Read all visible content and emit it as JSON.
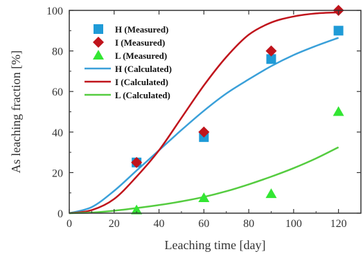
{
  "chart_data": {
    "type": "scatter",
    "xlabel": "Leaching time [day]",
    "ylabel": "As leaching fraction [%]",
    "xlim": [
      0,
      130
    ],
    "ylim": [
      0,
      100
    ],
    "xticks": [
      0,
      20,
      40,
      60,
      80,
      100,
      120
    ],
    "yticks": [
      0,
      20,
      40,
      60,
      80,
      100
    ],
    "grid": false,
    "legend_position": "top-left",
    "series": [
      {
        "name": "H (Measured)",
        "kind": "marker",
        "marker": "square",
        "color": "#1f9bd7",
        "x": [
          30,
          60,
          90,
          120
        ],
        "y": [
          25,
          37.5,
          76,
          90
        ]
      },
      {
        "name": "I (Measured)",
        "kind": "marker",
        "marker": "diamond",
        "color": "#c0141c",
        "x": [
          30,
          60,
          90,
          120
        ],
        "y": [
          25,
          40,
          80,
          100
        ]
      },
      {
        "name": "L (Measured)",
        "kind": "marker",
        "marker": "triangle",
        "color": "#33e633",
        "x": [
          30,
          60,
          90,
          120
        ],
        "y": [
          1.5,
          7.5,
          9.5,
          50
        ]
      },
      {
        "name": "H (Calculated)",
        "kind": "line",
        "color": "#3aa0d9",
        "x": [
          0,
          10,
          20,
          30,
          40,
          50,
          60,
          70,
          80,
          90,
          100,
          110,
          120
        ],
        "y": [
          0,
          3,
          11,
          21,
          31,
          41,
          50.5,
          59,
          66,
          72.5,
          78,
          82.5,
          86.5
        ]
      },
      {
        "name": "I (Calculated)",
        "kind": "line",
        "color": "#c0141c",
        "x": [
          0,
          10,
          20,
          30,
          40,
          50,
          60,
          70,
          80,
          90,
          100,
          110,
          120
        ],
        "y": [
          0,
          1.5,
          7,
          18,
          31,
          47,
          63,
          77,
          88,
          94,
          97,
          98.5,
          99
        ]
      },
      {
        "name": "L (Calculated)",
        "kind": "line",
        "color": "#55cc40",
        "x": [
          0,
          10,
          20,
          30,
          40,
          50,
          60,
          70,
          80,
          90,
          100,
          110,
          120
        ],
        "y": [
          0,
          0.3,
          1.2,
          2.5,
          4,
          5.8,
          8,
          10.8,
          14.2,
          18,
          22.2,
          27,
          32.5
        ]
      }
    ]
  }
}
